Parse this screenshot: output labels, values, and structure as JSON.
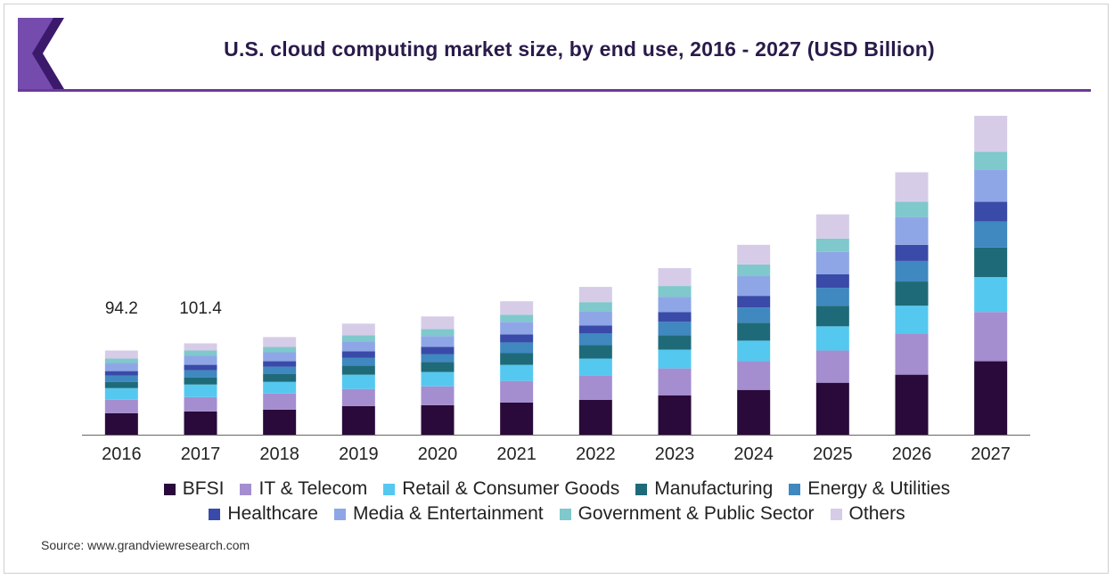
{
  "header": {
    "title": "U.S. cloud computing market size, by end use, 2016 - 2027 (USD Billion)"
  },
  "source": "Source: www.grandviewresearch.com",
  "colors": {
    "title_rule": "#6a3a96",
    "logo_dark": "#3b1a6b",
    "logo_light": "#8a5cc4"
  },
  "chart_data": {
    "type": "bar",
    "stacked": true,
    "title": "U.S. cloud computing market size, by end use, 2016 - 2027 (USD Billion)",
    "categories": [
      "2016",
      "2017",
      "2018",
      "2019",
      "2020",
      "2021",
      "2022",
      "2023",
      "2024",
      "2025",
      "2026",
      "2027"
    ],
    "ylim": [
      0,
      360
    ],
    "grid": false,
    "legend_position": "bottom",
    "data_labels": [
      {
        "category": "2016",
        "text": "94.2"
      },
      {
        "category": "2017",
        "text": "101.4"
      }
    ],
    "series": [
      {
        "name": "BFSI",
        "color": "#2a0a3a",
        "values": [
          24,
          26,
          28,
          32,
          33,
          36,
          39,
          44,
          50,
          58,
          67,
          82
        ]
      },
      {
        "name": "IT & Telecom",
        "color": "#a48ed0",
        "values": [
          15,
          16,
          18,
          19,
          21,
          24,
          27,
          30,
          32,
          36,
          46,
          55
        ]
      },
      {
        "name": "Retail & Consumer Goods",
        "color": "#55c8f0",
        "values": [
          13,
          14,
          13,
          16,
          16,
          18,
          19,
          21,
          23,
          27,
          31,
          39
        ]
      },
      {
        "name": "Manufacturing",
        "color": "#1f6a78",
        "values": [
          7,
          8,
          9,
          10,
          11,
          13,
          15,
          16,
          20,
          23,
          27,
          33
        ]
      },
      {
        "name": "Energy & Utilities",
        "color": "#3f88c0",
        "values": [
          7,
          8,
          8,
          9,
          9,
          12,
          13,
          15,
          17,
          20,
          23,
          29
        ]
      },
      {
        "name": "Healthcare",
        "color": "#3a4aa8",
        "values": [
          5,
          6,
          6,
          7,
          8,
          9,
          9,
          11,
          13,
          15,
          18,
          22
        ]
      },
      {
        "name": "Media & Entertainment",
        "color": "#8fa6e6",
        "values": [
          9,
          10,
          10,
          11,
          12,
          14,
          16,
          17,
          22,
          25,
          31,
          36
        ]
      },
      {
        "name": "Government & Public Sector",
        "color": "#7fc8cc",
        "values": [
          5,
          6,
          6,
          7,
          8,
          8,
          10,
          12,
          13,
          15,
          17,
          20
        ]
      },
      {
        "name": "Others",
        "color": "#d6cce8",
        "values": [
          9,
          8,
          11,
          13,
          14,
          15,
          17,
          20,
          22,
          27,
          33,
          40
        ]
      }
    ]
  }
}
